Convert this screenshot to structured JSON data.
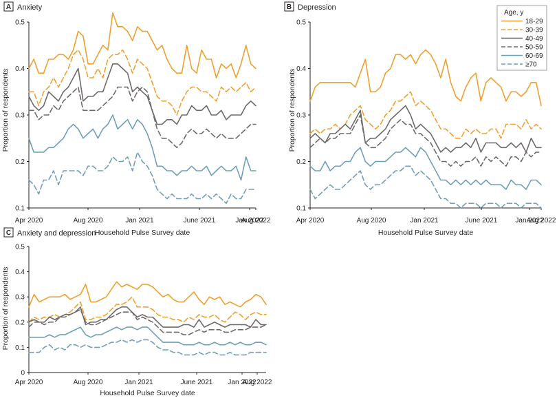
{
  "figure": {
    "colors": {
      "18-29": "#f0a030",
      "30-39": "#f0a030",
      "40-49": "#6e6a68",
      "50-59": "#6e6a68",
      "60-69": "#6f9fb9",
      "≥70": "#6f9fb9"
    },
    "dashed_series": [
      "30-39",
      "50-59",
      "≥70"
    ]
  },
  "legend": {
    "title": "Age, y",
    "items": [
      "18-29",
      "30-39",
      "40-49",
      "50-59",
      "60-69",
      "≥70"
    ]
  },
  "chart_data": [
    {
      "type": "line",
      "panel": "A",
      "title": "Anxiety",
      "xlabel": "Household Pulse Survey date",
      "ylabel": "Proportion of respondents",
      "x_start": "Apr 2020",
      "x_end": "Aug 2022",
      "xticks": [
        "Apr 2020",
        "Aug 2020",
        "Jan 2021",
        "June 2021",
        "Jan 2022",
        "Aug 2022"
      ],
      "yticks": [
        "0.1",
        "0.2",
        "0.3",
        "0.4",
        "0.5"
      ],
      "ylim": [
        0.1,
        0.5
      ],
      "series": [
        {
          "name": "18-29",
          "values": [
            0.4,
            0.42,
            0.39,
            0.39,
            0.42,
            0.42,
            0.43,
            0.43,
            0.42,
            0.44,
            0.48,
            0.47,
            0.41,
            0.41,
            0.43,
            0.45,
            0.44,
            0.52,
            0.49,
            0.49,
            0.48,
            0.46,
            0.49,
            0.48,
            0.48,
            0.46,
            0.44,
            0.45,
            0.42,
            0.4,
            0.39,
            0.39,
            0.45,
            0.4,
            0.39,
            0.44,
            0.42,
            0.42,
            0.38,
            0.41,
            0.4,
            0.41,
            0.38,
            0.41,
            0.45,
            0.41,
            0.4
          ]
        },
        {
          "name": "30-39",
          "values": [
            0.35,
            0.35,
            0.32,
            0.35,
            0.36,
            0.38,
            0.36,
            0.38,
            0.4,
            0.43,
            0.44,
            0.42,
            0.38,
            0.38,
            0.4,
            0.38,
            0.42,
            0.43,
            0.43,
            0.44,
            0.42,
            0.39,
            0.42,
            0.41,
            0.4,
            0.37,
            0.34,
            0.33,
            0.33,
            0.32,
            0.3,
            0.33,
            0.35,
            0.36,
            0.36,
            0.35,
            0.35,
            0.34,
            0.33,
            0.36,
            0.35,
            0.36,
            0.35,
            0.36,
            0.37,
            0.35,
            0.36
          ]
        },
        {
          "name": "40-49",
          "values": [
            0.34,
            0.32,
            0.31,
            0.32,
            0.35,
            0.34,
            0.33,
            0.35,
            0.36,
            0.38,
            0.4,
            0.33,
            0.34,
            0.34,
            0.35,
            0.35,
            0.38,
            0.41,
            0.41,
            0.4,
            0.39,
            0.35,
            0.36,
            0.35,
            0.34,
            0.31,
            0.28,
            0.28,
            0.29,
            0.29,
            0.28,
            0.3,
            0.3,
            0.32,
            0.31,
            0.31,
            0.32,
            0.3,
            0.3,
            0.31,
            0.29,
            0.3,
            0.3,
            0.3,
            0.32,
            0.33,
            0.32
          ]
        },
        {
          "name": "50-59",
          "values": [
            0.31,
            0.31,
            0.29,
            0.3,
            0.3,
            0.32,
            0.31,
            0.33,
            0.34,
            0.35,
            0.36,
            0.31,
            0.31,
            0.31,
            0.31,
            0.32,
            0.33,
            0.34,
            0.36,
            0.36,
            0.36,
            0.33,
            0.35,
            0.36,
            0.35,
            0.31,
            0.27,
            0.25,
            0.25,
            0.24,
            0.23,
            0.24,
            0.26,
            0.27,
            0.26,
            0.26,
            0.27,
            0.26,
            0.25,
            0.26,
            0.25,
            0.25,
            0.25,
            0.26,
            0.27,
            0.28,
            0.28
          ]
        },
        {
          "name": "60-69",
          "values": [
            0.25,
            0.22,
            0.22,
            0.22,
            0.23,
            0.23,
            0.24,
            0.25,
            0.27,
            0.28,
            0.27,
            0.25,
            0.26,
            0.27,
            0.25,
            0.27,
            0.28,
            0.3,
            0.27,
            0.28,
            0.29,
            0.27,
            0.29,
            0.28,
            0.26,
            0.23,
            0.19,
            0.19,
            0.18,
            0.18,
            0.17,
            0.18,
            0.18,
            0.19,
            0.18,
            0.18,
            0.19,
            0.17,
            0.18,
            0.19,
            0.18,
            0.18,
            0.19,
            0.16,
            0.21,
            0.18,
            0.18
          ]
        },
        {
          "name": "≥70",
          "values": [
            0.16,
            0.15,
            0.13,
            0.16,
            0.16,
            0.18,
            0.15,
            0.18,
            0.18,
            0.18,
            0.18,
            0.17,
            0.19,
            0.19,
            0.18,
            0.18,
            0.19,
            0.21,
            0.2,
            0.2,
            0.21,
            0.18,
            0.22,
            0.2,
            0.19,
            0.17,
            0.14,
            0.13,
            0.12,
            0.13,
            0.12,
            0.12,
            0.12,
            0.13,
            0.12,
            0.12,
            0.13,
            0.12,
            0.13,
            0.12,
            0.11,
            0.13,
            0.12,
            0.12,
            0.14,
            0.14,
            0.14
          ]
        }
      ]
    },
    {
      "type": "line",
      "panel": "B",
      "title": "Depression",
      "xlabel": "Household Pulse Survey date",
      "ylabel": "Proportion of respondents",
      "x_start": "Apr 2020",
      "x_end": "Aug 2022",
      "xticks": [
        "Apr 2020",
        "Aug 2020",
        "Jan 2021",
        "June 2021",
        "Jan 2022",
        "Aug 2022"
      ],
      "yticks": [
        "0.1",
        "0.2",
        "0.3",
        "0.4",
        "0.5"
      ],
      "ylim": [
        0.1,
        0.5
      ],
      "series": [
        {
          "name": "18-29",
          "values": [
            0.33,
            0.36,
            0.37,
            0.37,
            0.37,
            0.37,
            0.37,
            0.37,
            0.37,
            0.36,
            0.39,
            0.42,
            0.35,
            0.35,
            0.36,
            0.39,
            0.4,
            0.43,
            0.43,
            0.42,
            0.43,
            0.41,
            0.43,
            0.44,
            0.43,
            0.41,
            0.38,
            0.42,
            0.37,
            0.34,
            0.33,
            0.36,
            0.38,
            0.39,
            0.33,
            0.37,
            0.38,
            0.37,
            0.36,
            0.33,
            0.35,
            0.35,
            0.34,
            0.35,
            0.37,
            0.37,
            0.32
          ]
        },
        {
          "name": "30-39",
          "values": [
            0.26,
            0.27,
            0.26,
            0.27,
            0.27,
            0.28,
            0.27,
            0.28,
            0.3,
            0.31,
            0.32,
            0.29,
            0.28,
            0.27,
            0.28,
            0.3,
            0.31,
            0.33,
            0.33,
            0.34,
            0.35,
            0.32,
            0.33,
            0.32,
            0.31,
            0.29,
            0.27,
            0.27,
            0.26,
            0.25,
            0.25,
            0.27,
            0.26,
            0.27,
            0.26,
            0.26,
            0.27,
            0.27,
            0.25,
            0.28,
            0.28,
            0.28,
            0.27,
            0.29,
            0.27,
            0.28,
            0.27
          ]
        },
        {
          "name": "40-49",
          "values": [
            0.25,
            0.26,
            0.25,
            0.24,
            0.26,
            0.26,
            0.27,
            0.28,
            0.27,
            0.29,
            0.31,
            0.24,
            0.25,
            0.25,
            0.26,
            0.27,
            0.29,
            0.3,
            0.31,
            0.32,
            0.3,
            0.27,
            0.28,
            0.27,
            0.26,
            0.24,
            0.22,
            0.23,
            0.22,
            0.23,
            0.23,
            0.24,
            0.23,
            0.25,
            0.22,
            0.24,
            0.24,
            0.24,
            0.23,
            0.23,
            0.24,
            0.23,
            0.24,
            0.22,
            0.25,
            0.23,
            0.23
          ]
        },
        {
          "name": "50-59",
          "values": [
            0.23,
            0.24,
            0.25,
            0.24,
            0.25,
            0.25,
            0.26,
            0.26,
            0.26,
            0.28,
            0.3,
            0.24,
            0.23,
            0.23,
            0.24,
            0.25,
            0.27,
            0.28,
            0.29,
            0.28,
            0.28,
            0.26,
            0.26,
            0.25,
            0.24,
            0.22,
            0.2,
            0.2,
            0.19,
            0.2,
            0.19,
            0.2,
            0.2,
            0.21,
            0.19,
            0.21,
            0.2,
            0.21,
            0.2,
            0.19,
            0.21,
            0.21,
            0.2,
            0.22,
            0.21,
            0.22,
            0.22
          ]
        },
        {
          "name": "60-69",
          "values": [
            0.19,
            0.18,
            0.18,
            0.2,
            0.18,
            0.19,
            0.19,
            0.2,
            0.2,
            0.22,
            0.23,
            0.2,
            0.19,
            0.2,
            0.2,
            0.2,
            0.21,
            0.22,
            0.22,
            0.23,
            0.22,
            0.21,
            0.23,
            0.22,
            0.2,
            0.18,
            0.16,
            0.16,
            0.15,
            0.16,
            0.15,
            0.16,
            0.15,
            0.16,
            0.15,
            0.16,
            0.15,
            0.15,
            0.15,
            0.14,
            0.16,
            0.15,
            0.15,
            0.14,
            0.16,
            0.16,
            0.15
          ]
        },
        {
          "name": "≥70",
          "values": [
            0.14,
            0.12,
            0.13,
            0.14,
            0.15,
            0.14,
            0.14,
            0.15,
            0.16,
            0.17,
            0.18,
            0.15,
            0.14,
            0.15,
            0.15,
            0.16,
            0.17,
            0.18,
            0.18,
            0.19,
            0.19,
            0.17,
            0.18,
            0.17,
            0.16,
            0.14,
            0.12,
            0.12,
            0.11,
            0.11,
            0.1,
            0.11,
            0.11,
            0.11,
            0.1,
            0.11,
            0.11,
            0.11,
            0.1,
            0.11,
            0.11,
            0.11,
            0.1,
            0.11,
            0.11,
            0.11,
            0.1
          ]
        }
      ]
    },
    {
      "type": "line",
      "panel": "C",
      "title": "Anxiety and depression",
      "xlabel": "Household Pulse Survey date",
      "ylabel": "Proportion of respondents",
      "x_start": "Apr 2020",
      "x_end": "Aug 2022",
      "xticks": [
        "Apr 2020",
        "Aug 2020",
        "Jan 2021",
        "June 2021",
        "Jan 2022",
        "Aug 2022"
      ],
      "yticks": [
        "0",
        "0.1",
        "0.2",
        "0.3",
        "0.4",
        "0.5"
      ],
      "ylim": [
        0,
        0.5
      ],
      "series": [
        {
          "name": "18-29",
          "values": [
            0.26,
            0.31,
            0.28,
            0.29,
            0.3,
            0.3,
            0.3,
            0.31,
            0.29,
            0.3,
            0.31,
            0.35,
            0.28,
            0.28,
            0.29,
            0.3,
            0.33,
            0.36,
            0.34,
            0.35,
            0.34,
            0.33,
            0.35,
            0.35,
            0.34,
            0.32,
            0.3,
            0.31,
            0.29,
            0.28,
            0.28,
            0.3,
            0.32,
            0.29,
            0.27,
            0.3,
            0.29,
            0.3,
            0.27,
            0.28,
            0.27,
            0.26,
            0.28,
            0.29,
            0.31,
            0.3,
            0.27
          ]
        },
        {
          "name": "30-39",
          "values": [
            0.2,
            0.22,
            0.21,
            0.22,
            0.22,
            0.23,
            0.22,
            0.23,
            0.24,
            0.26,
            0.28,
            0.21,
            0.21,
            0.22,
            0.22,
            0.23,
            0.25,
            0.27,
            0.27,
            0.28,
            0.3,
            0.26,
            0.26,
            0.26,
            0.25,
            0.23,
            0.22,
            0.22,
            0.21,
            0.21,
            0.2,
            0.22,
            0.21,
            0.23,
            0.22,
            0.22,
            0.23,
            0.21,
            0.2,
            0.22,
            0.24,
            0.23,
            0.21,
            0.23,
            0.24,
            0.23,
            0.23
          ]
        },
        {
          "name": "40-49",
          "values": [
            0.2,
            0.21,
            0.2,
            0.2,
            0.22,
            0.21,
            0.22,
            0.23,
            0.23,
            0.24,
            0.26,
            0.19,
            0.2,
            0.2,
            0.21,
            0.21,
            0.23,
            0.25,
            0.26,
            0.26,
            0.24,
            0.22,
            0.23,
            0.22,
            0.22,
            0.2,
            0.18,
            0.18,
            0.18,
            0.18,
            0.19,
            0.19,
            0.18,
            0.21,
            0.18,
            0.19,
            0.2,
            0.19,
            0.18,
            0.19,
            0.19,
            0.19,
            0.19,
            0.18,
            0.21,
            0.19,
            0.19
          ]
        },
        {
          "name": "50-59",
          "values": [
            0.18,
            0.2,
            0.2,
            0.19,
            0.2,
            0.2,
            0.22,
            0.22,
            0.23,
            0.24,
            0.25,
            0.2,
            0.19,
            0.19,
            0.2,
            0.21,
            0.22,
            0.23,
            0.24,
            0.24,
            0.24,
            0.21,
            0.22,
            0.21,
            0.2,
            0.18,
            0.16,
            0.16,
            0.16,
            0.16,
            0.15,
            0.15,
            0.16,
            0.17,
            0.16,
            0.17,
            0.17,
            0.17,
            0.16,
            0.16,
            0.17,
            0.17,
            0.17,
            0.18,
            0.18,
            0.18,
            0.19
          ]
        },
        {
          "name": "60-69",
          "values": [
            0.14,
            0.14,
            0.14,
            0.14,
            0.15,
            0.14,
            0.15,
            0.15,
            0.16,
            0.17,
            0.18,
            0.15,
            0.14,
            0.15,
            0.15,
            0.16,
            0.17,
            0.18,
            0.17,
            0.18,
            0.18,
            0.17,
            0.18,
            0.18,
            0.16,
            0.14,
            0.12,
            0.12,
            0.12,
            0.12,
            0.11,
            0.11,
            0.11,
            0.12,
            0.11,
            0.11,
            0.12,
            0.11,
            0.11,
            0.12,
            0.11,
            0.12,
            0.11,
            0.11,
            0.12,
            0.12,
            0.11
          ]
        },
        {
          "name": "≥70",
          "values": [
            0.08,
            0.08,
            0.08,
            0.1,
            0.11,
            0.09,
            0.1,
            0.09,
            0.11,
            0.11,
            0.1,
            0.11,
            0.1,
            0.1,
            0.1,
            0.11,
            0.12,
            0.12,
            0.13,
            0.12,
            0.13,
            0.12,
            0.13,
            0.13,
            0.12,
            0.1,
            0.09,
            0.09,
            0.08,
            0.08,
            0.07,
            0.07,
            0.07,
            0.08,
            0.07,
            0.08,
            0.08,
            0.07,
            0.07,
            0.08,
            0.07,
            0.07,
            0.07,
            0.08,
            0.08,
            0.08,
            0.08
          ]
        }
      ]
    }
  ]
}
